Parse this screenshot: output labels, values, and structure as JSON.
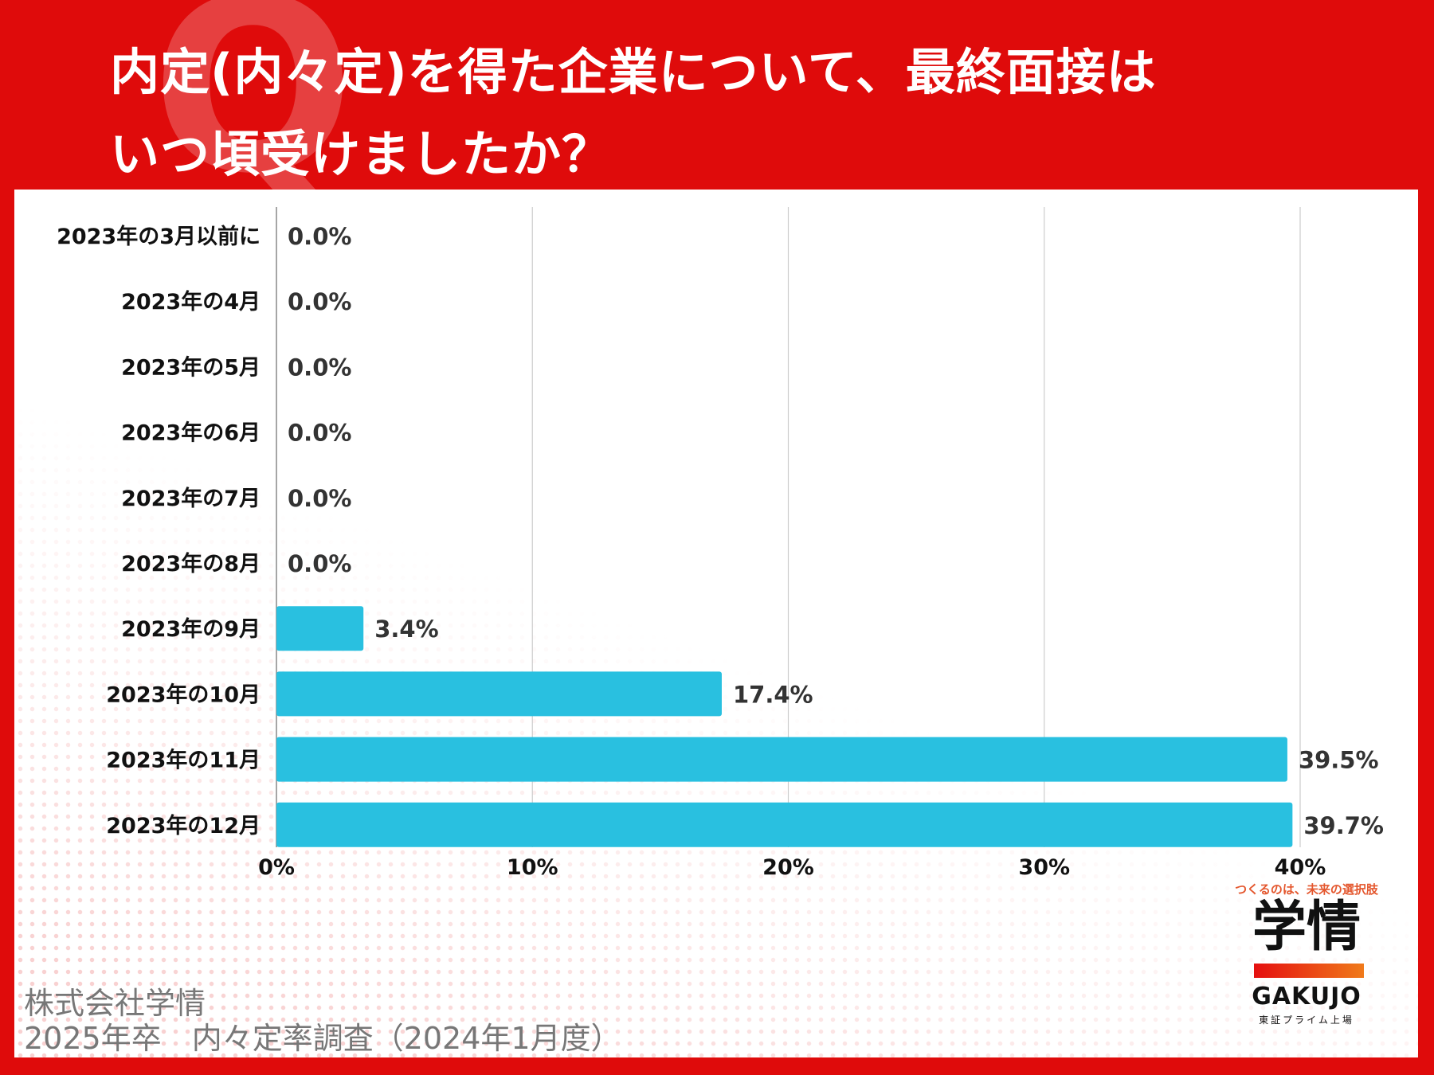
{
  "title": {
    "line1": "内定(内々定)を得た企業について、最終面接は",
    "line2": "いつ頃受けましたか？",
    "mark": "Q"
  },
  "chart_data": {
    "type": "bar",
    "orientation": "horizontal",
    "categories": [
      "2023年の3月以前に",
      "2023年の4月",
      "2023年の5月",
      "2023年の6月",
      "2023年の7月",
      "2023年の8月",
      "2023年の9月",
      "2023年の10月",
      "2023年の11月",
      "2023年の12月"
    ],
    "values": [
      0.0,
      0.0,
      0.0,
      0.0,
      0.0,
      0.0,
      3.4,
      17.4,
      39.5,
      39.7
    ],
    "value_labels": [
      "0.0%",
      "0.0%",
      "0.0%",
      "0.0%",
      "0.0%",
      "0.0%",
      "3.4%",
      "17.4%",
      "39.5%",
      "39.7%"
    ],
    "xlim": [
      0,
      40
    ],
    "x_ticks": [
      0,
      10,
      20,
      30,
      40
    ],
    "x_tick_labels": [
      "0%",
      "10%",
      "20%",
      "30%",
      "40%"
    ],
    "grid": true,
    "bar_color": "#29c0e0"
  },
  "footer": {
    "line1": "株式会社学情",
    "line2": "2025年卒　内々定率調査（2024年1月度）"
  },
  "logo": {
    "tagline": "つくるのは、未来の選択肢",
    "kanji": "学情",
    "name": "GAKUJO",
    "sub": "東証プライム上場"
  },
  "colors": {
    "background": "#df0b0b",
    "accent": "#29c0e0",
    "panel": "#ffffff"
  }
}
